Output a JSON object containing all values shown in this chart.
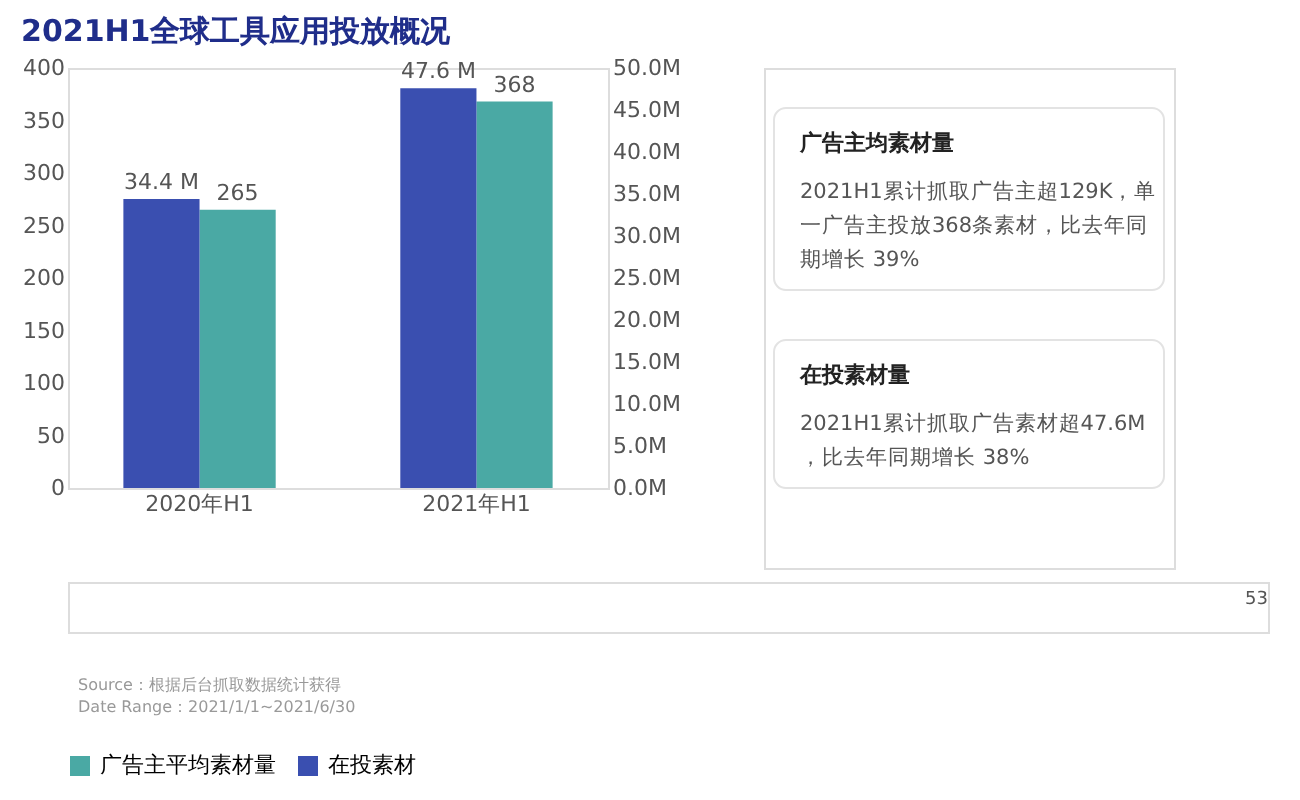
{
  "chart_data": {
    "type": "bar",
    "title": "2021H1全球工具应用投放概况",
    "categories": [
      "2020年H1",
      "2021年H1"
    ],
    "series": [
      {
        "name": "广告主平均素材量",
        "color": "#4aa9a4",
        "values": [
          265,
          368
        ],
        "value_labels": [
          "265",
          "368"
        ]
      },
      {
        "name": "在投素材",
        "color": "#3a4fb0",
        "axis": "y2",
        "values": [
          34.4,
          47.6
        ],
        "value_labels": [
          "34.4 M",
          "47.6 M"
        ]
      }
    ],
    "ylim": [
      0,
      400
    ],
    "yticks": [
      0,
      50,
      100,
      150,
      200,
      250,
      300,
      350,
      400
    ],
    "y2lim": [
      0,
      50
    ],
    "y2ticks": [
      {
        "value": 0,
        "label": "0.0M"
      },
      {
        "value": 5,
        "label": "5.0M"
      },
      {
        "value": 10,
        "label": "10.0M"
      },
      {
        "value": 15,
        "label": "15.0M"
      },
      {
        "value": 20,
        "label": "20.0M"
      },
      {
        "value": 25,
        "label": "25.0M"
      },
      {
        "value": 30,
        "label": "30.0M"
      },
      {
        "value": 35,
        "label": "35.0M"
      },
      {
        "value": 40,
        "label": "40.0M"
      },
      {
        "value": 45,
        "label": "45.0M"
      },
      {
        "value": 50,
        "label": "50.0M"
      }
    ],
    "grid": false,
    "legend": "bottom",
    "annotations": [
      "广告主均素材量",
      "2021H1累计抓取广告主超129K，单一广告主投放368条素材，比去年同期增长 39%",
      "在投素材量",
      "2021H1累计抓取广告素材超47.6M，比去年同期增长 38%",
      "Source：根据后台抓取数据统计获得",
      "Date Range：2021/1/1~2021/6/30",
      "53"
    ]
  }
}
